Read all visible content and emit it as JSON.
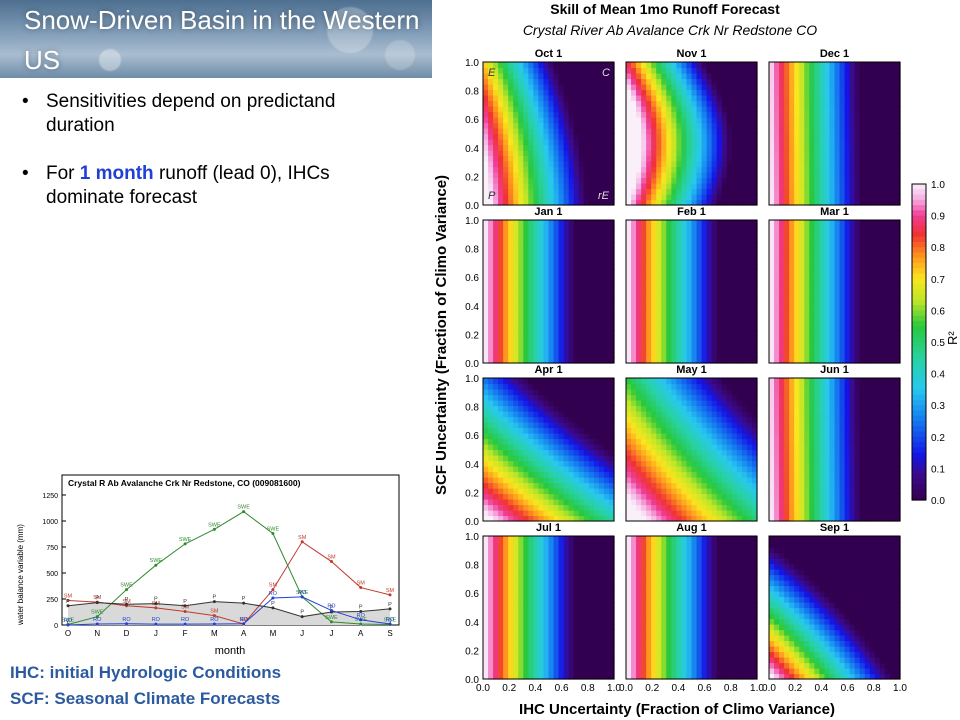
{
  "slide": {
    "title": "Snow-Driven Basin in the Western US",
    "bullet1": "Sensitivities depend on predictand duration",
    "bullet2_pre": "For ",
    "bullet2_hl": "1 month",
    "bullet2_post": " runoff (lead 0), IHCs dominate forecast",
    "note_ihc": "IHC:  initial Hydrologic Conditions",
    "note_scf": "SCF:  Seasonal Climate Forecasts"
  },
  "chart_data": [
    {
      "type": "line",
      "title": "Crystal R Ab Avalanche Crk Nr Redstone, CO (009081600)",
      "xlabel": "month",
      "ylabel": "water balance variable (mm)",
      "categories": [
        "O",
        "N",
        "D",
        "J",
        "F",
        "M",
        "A",
        "M",
        "J",
        "J",
        "A",
        "S"
      ],
      "ylim": [
        0,
        1250
      ],
      "yticks": [
        0,
        250,
        500,
        750,
        1000,
        1250
      ],
      "series": [
        {
          "name": "SWE",
          "color": "#2e8b2e",
          "values": [
            5,
            80,
            340,
            575,
            780,
            920,
            1090,
            880,
            270,
            30,
            10,
            5
          ]
        },
        {
          "name": "SM",
          "color": "#c0392b",
          "values": [
            235,
            220,
            185,
            165,
            130,
            90,
            10,
            340,
            800,
            610,
            360,
            290
          ]
        },
        {
          "name": "P",
          "color": "#333333",
          "values": [
            185,
            215,
            200,
            205,
            185,
            225,
            210,
            165,
            80,
            125,
            130,
            155
          ]
        },
        {
          "name": "RO",
          "color": "#1f3fd6",
          "values": [
            0,
            10,
            12,
            8,
            8,
            10,
            12,
            260,
            270,
            140,
            50,
            10
          ]
        }
      ]
    },
    {
      "type": "heatmap",
      "title": "Skill of Mean 1mo Runoff Forecast",
      "subtitle": "Crystal River Ab Avalance Crk Nr Redstone CO",
      "xlabel": "IHC Uncertainty (Fraction of Climo Variance)",
      "ylabel": "SCF Uncertainty (Fraction of Climo Variance)",
      "colorbar_label": "R²",
      "colorbar_ticks": [
        "0.0",
        "0.1",
        "0.2",
        "0.3",
        "0.4",
        "0.5",
        "0.6",
        "0.7",
        "0.8",
        "0.9",
        "1.0"
      ],
      "axis_ticks": [
        "0.0",
        "0.2",
        "0.4",
        "0.6",
        "0.8",
        "1.0"
      ],
      "corner_labels": {
        "top_left": "E",
        "top_right": "C",
        "bottom_left": "P",
        "bottom_right": "rE"
      },
      "panels": [
        {
          "label": "Oct 1",
          "pattern": "skew",
          "bias": 0.05,
          "sensitivity": 0.35
        },
        {
          "label": "Nov 1",
          "pattern": "wave",
          "bias": 0.0,
          "sensitivity": 0.15
        },
        {
          "label": "Dec 1",
          "pattern": "vertical",
          "bias": 0.0,
          "sensitivity": 0.02
        },
        {
          "label": "Jan 1",
          "pattern": "vertical",
          "bias": 0.0,
          "sensitivity": 0.0
        },
        {
          "label": "Feb 1",
          "pattern": "vertical",
          "bias": 0.0,
          "sensitivity": 0.0
        },
        {
          "label": "Mar 1",
          "pattern": "vertical",
          "bias": 0.0,
          "sensitivity": 0.0
        },
        {
          "label": "Apr 1",
          "pattern": "diagonal",
          "bias": 0.0,
          "sensitivity": 0.8
        },
        {
          "label": "May 1",
          "pattern": "diagonal",
          "bias": 0.05,
          "sensitivity": 0.55
        },
        {
          "label": "Jun 1",
          "pattern": "vertical",
          "bias": 0.0,
          "sensitivity": 0.02
        },
        {
          "label": "Jul 1",
          "pattern": "vertical",
          "bias": 0.0,
          "sensitivity": 0.0
        },
        {
          "label": "Aug 1",
          "pattern": "vertical",
          "bias": 0.0,
          "sensitivity": 0.0
        },
        {
          "label": "Sep 1",
          "pattern": "corner",
          "bias": 0.0,
          "sensitivity": 1.0
        }
      ]
    }
  ]
}
